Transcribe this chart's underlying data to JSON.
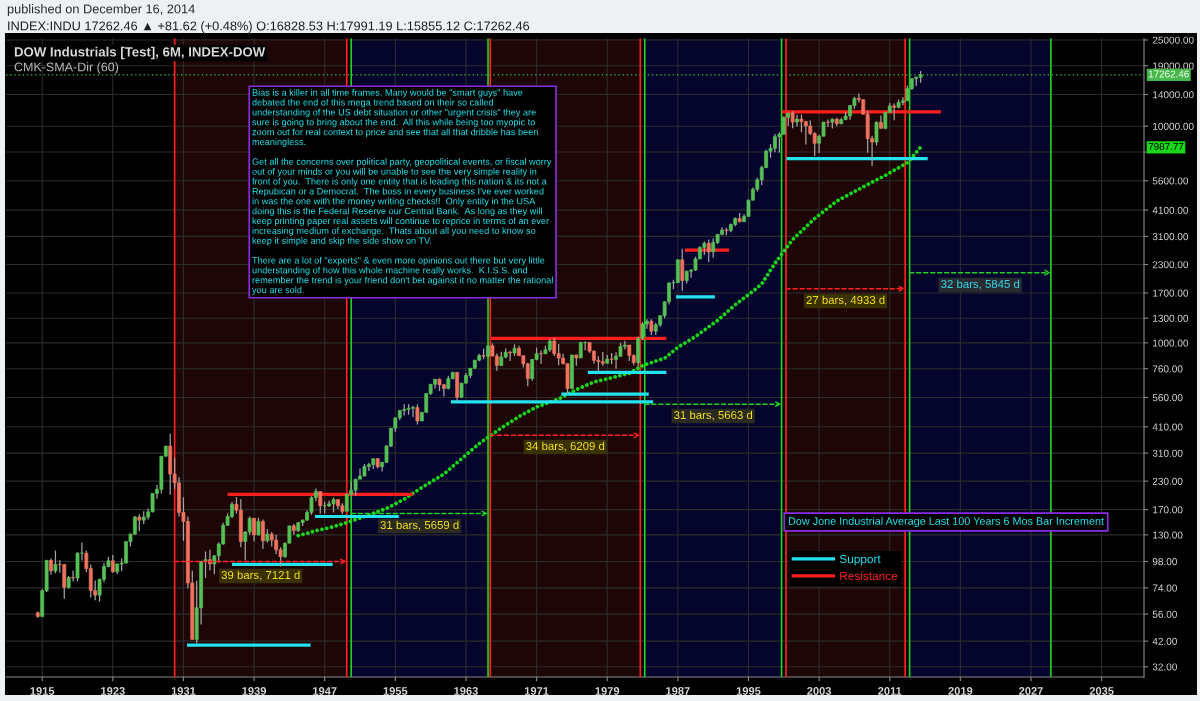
{
  "chart_data": {
    "type": "candlestick",
    "title": "DOW Industrials [Test], 6M, INDEX-DOW",
    "subtitle": "INDEX:INDU 17262.46 ▲ +81.62 (+0.48%) O:16828.53 H:17991.19 L:15855.12 C:17262.46",
    "x": [
      1914.5,
      1915,
      1915.5,
      1916,
      1916.5,
      1917,
      1917.5,
      1918,
      1918.5,
      1919,
      1919.5,
      1920,
      1920.5,
      1921,
      1921.5,
      1922,
      1922.5,
      1923,
      1923.5,
      1924,
      1924.5,
      1925,
      1925.5,
      1926,
      1926.5,
      1927,
      1927.5,
      1928,
      1928.5,
      1929,
      1929.5,
      1930,
      1930.5,
      1931,
      1931.5,
      1932,
      1932.5,
      1933,
      1933.5,
      1934,
      1934.5,
      1935,
      1935.5,
      1936,
      1936.5,
      1937,
      1937.5,
      1938,
      1938.5,
      1939,
      1939.5,
      1940,
      1940.5,
      1941,
      1941.5,
      1942,
      1942.5,
      1943,
      1943.5,
      1944,
      1944.5,
      1945,
      1945.5,
      1946,
      1946.5,
      1947,
      1947.5,
      1948,
      1948.5,
      1949,
      1949.5,
      1950,
      1950.5,
      1951,
      1951.5,
      1952,
      1952.5,
      1953,
      1953.5,
      1954,
      1954.5,
      1955,
      1955.5,
      1956,
      1956.5,
      1957,
      1957.5,
      1958,
      1958.5,
      1959,
      1959.5,
      1960,
      1960.5,
      1961,
      1961.5,
      1962,
      1962.5,
      1963,
      1963.5,
      1964,
      1964.5,
      1965,
      1965.5,
      1966,
      1966.5,
      1967,
      1967.5,
      1968,
      1968.5,
      1969,
      1969.5,
      1970,
      1970.5,
      1971,
      1971.5,
      1972,
      1972.5,
      1973,
      1973.5,
      1974,
      1974.5,
      1975,
      1975.5,
      1976,
      1976.5,
      1977,
      1977.5,
      1978,
      1978.5,
      1979,
      1979.5,
      1980,
      1980.5,
      1981,
      1981.5,
      1982,
      1982.5,
      1983,
      1983.5,
      1984,
      1984.5,
      1985,
      1985.5,
      1986,
      1986.5,
      1987,
      1987.5,
      1988,
      1988.5,
      1989,
      1989.5,
      1990,
      1990.5,
      1991,
      1991.5,
      1992,
      1992.5,
      1993,
      1993.5,
      1994,
      1994.5,
      1995,
      1995.5,
      1996,
      1996.5,
      1997,
      1997.5,
      1998,
      1998.5,
      1999,
      1999.5,
      2000,
      2000.5,
      2001,
      2001.5,
      2002,
      2002.5,
      2003,
      2003.5,
      2004,
      2004.5,
      2005,
      2005.5,
      2006,
      2006.5,
      2007,
      2007.5,
      2008,
      2008.5,
      2009,
      2009.5,
      2010,
      2010.5,
      2011,
      2011.5,
      2012,
      2012.5,
      2013,
      2013.5,
      2014,
      2014.5
    ],
    "ohlc": [
      [
        56.8,
        57.5,
        53.8,
        54.6
      ],
      [
        54.6,
        73,
        54.2,
        71.8
      ],
      [
        71.8,
        99.2,
        70.8,
        99.2
      ],
      [
        99.2,
        101,
        85,
        88.6
      ],
      [
        88.6,
        110,
        86.4,
        95
      ],
      [
        95,
        99.2,
        87,
        94.8
      ],
      [
        94.8,
        95.2,
        66,
        74.4
      ],
      [
        74.4,
        84,
        73.4,
        82.6
      ],
      [
        82.6,
        89.1,
        79.2,
        82.2
      ],
      [
        82.2,
        108,
        79.2,
        107
      ],
      [
        107,
        120,
        98.9,
        107
      ],
      [
        107,
        110,
        87.4,
        90.8
      ],
      [
        90.8,
        94.5,
        66.8,
        72
      ],
      [
        72,
        80,
        64.9,
        68.5
      ],
      [
        68.5,
        81.5,
        63.9,
        81.1
      ],
      [
        81.1,
        96.4,
        78.6,
        93
      ],
      [
        93,
        103,
        92,
        98.7
      ],
      [
        98.7,
        105,
        87,
        87.9
      ],
      [
        87.9,
        95.6,
        85.8,
        95.5
      ],
      [
        95.5,
        101,
        88.3,
        96.4
      ],
      [
        96.4,
        121,
        96,
        121
      ],
      [
        121,
        132,
        115,
        131
      ],
      [
        131,
        159,
        130,
        157
      ],
      [
        157,
        162,
        135,
        152
      ],
      [
        152,
        167,
        146,
        157
      ],
      [
        157,
        172,
        153,
        166
      ],
      [
        166,
        202,
        165,
        202
      ],
      [
        202,
        221,
        191,
        211
      ],
      [
        211,
        300,
        202,
        300
      ],
      [
        300,
        334,
        297,
        334
      ],
      [
        334,
        381,
        199,
        248
      ],
      [
        248,
        294,
        212,
        226
      ],
      [
        226,
        240,
        158,
        165
      ],
      [
        165,
        194,
        122,
        150
      ],
      [
        150,
        158,
        73.8,
        77.9
      ],
      [
        77.9,
        88.8,
        42.7,
        42.8
      ],
      [
        42.8,
        79.9,
        41.2,
        59.9
      ],
      [
        59.9,
        98.5,
        50.2,
        98.1
      ],
      [
        98.1,
        109,
        82.2,
        99.9
      ],
      [
        99.9,
        111,
        89.1,
        95.6
      ],
      [
        95.6,
        105,
        85.5,
        104
      ],
      [
        104,
        120,
        96.7,
        118
      ],
      [
        118,
        148,
        117,
        144
      ],
      [
        144,
        163,
        143,
        158
      ],
      [
        158,
        185,
        155,
        180
      ],
      [
        180,
        194,
        163,
        169
      ],
      [
        169,
        190,
        114,
        121
      ],
      [
        121,
        135,
        99,
        134
      ],
      [
        134,
        158,
        130,
        155
      ],
      [
        155,
        156,
        121,
        130
      ],
      [
        130,
        156,
        129,
        150
      ],
      [
        150,
        153,
        112,
        122
      ],
      [
        122,
        138,
        120,
        131
      ],
      [
        131,
        134,
        115,
        123
      ],
      [
        123,
        130,
        106,
        111
      ],
      [
        111,
        114,
        92.9,
        103
      ],
      [
        103,
        120,
        102,
        119
      ],
      [
        119,
        143,
        119,
        143
      ],
      [
        143,
        146,
        130,
        136
      ],
      [
        136,
        149,
        134,
        148
      ],
      [
        148,
        153,
        143,
        152
      ],
      [
        152,
        169,
        151,
        165
      ],
      [
        165,
        196,
        161,
        193
      ],
      [
        193,
        213,
        186,
        206
      ],
      [
        206,
        206,
        163,
        177
      ],
      [
        177,
        185,
        163,
        177
      ],
      [
        177,
        187,
        175,
        181
      ],
      [
        181,
        193,
        165,
        189
      ],
      [
        189,
        190,
        171,
        177
      ],
      [
        177,
        182,
        162,
        167
      ],
      [
        167,
        201,
        167,
        200
      ],
      [
        200,
        228,
        197,
        209
      ],
      [
        209,
        235,
        197,
        235
      ],
      [
        235,
        263,
        235,
        243
      ],
      [
        243,
        276,
        242,
        269
      ],
      [
        269,
        280,
        256,
        274
      ],
      [
        274,
        292,
        262,
        292
      ],
      [
        292,
        294,
        263,
        268
      ],
      [
        268,
        281,
        255,
        281
      ],
      [
        281,
        337,
        280,
        334
      ],
      [
        334,
        404,
        331,
        404
      ],
      [
        404,
        451,
        388,
        451
      ],
      [
        451,
        488,
        439,
        488
      ],
      [
        488,
        521,
        462,
        493
      ],
      [
        493,
        521,
        466,
        499
      ],
      [
        499,
        513,
        455,
        503
      ],
      [
        503,
        521,
        420,
        436
      ],
      [
        436,
        479,
        436,
        478
      ],
      [
        478,
        584,
        476,
        584
      ],
      [
        584,
        644,
        574,
        644
      ],
      [
        644,
        679,
        616,
        679
      ],
      [
        679,
        685,
        599,
        641
      ],
      [
        641,
        645,
        566,
        616
      ],
      [
        616,
        706,
        610,
        684
      ],
      [
        684,
        735,
        679,
        731
      ],
      [
        731,
        732,
        536,
        561
      ],
      [
        561,
        653,
        558,
        652
      ],
      [
        652,
        727,
        647,
        707
      ],
      [
        707,
        767,
        688,
        763
      ],
      [
        763,
        832,
        763,
        832
      ],
      [
        832,
        892,
        822,
        874
      ],
      [
        874,
        940,
        841,
        868
      ],
      [
        868,
        969,
        862,
        969
      ],
      [
        969,
        995,
        864,
        870
      ],
      [
        870,
        894,
        744,
        786
      ],
      [
        786,
        910,
        786,
        860
      ],
      [
        860,
        943,
        850,
        905
      ],
      [
        905,
        920,
        825,
        898
      ],
      [
        898,
        985,
        872,
        944
      ],
      [
        944,
        969,
        870,
        873
      ],
      [
        873,
        873,
        770,
        800
      ],
      [
        800,
        811,
        631,
        684
      ],
      [
        684,
        842,
        669,
        839
      ],
      [
        839,
        951,
        831,
        891
      ],
      [
        891,
        921,
        798,
        890
      ],
      [
        890,
        971,
        889,
        929
      ],
      [
        929,
        1036,
        910,
        1020
      ],
      [
        1020,
        1052,
        869,
        892
      ],
      [
        892,
        987,
        788,
        851
      ],
      [
        851,
        892,
        795,
        802
      ],
      [
        802,
        803,
        578,
        616
      ],
      [
        616,
        882,
        616,
        879
      ],
      [
        879,
        881,
        784,
        852
      ],
      [
        852,
        1011,
        852,
        1003
      ],
      [
        1003,
        1015,
        924,
        1005
      ],
      [
        1005,
        1005,
        899,
        916
      ],
      [
        916,
        923,
        801,
        831
      ],
      [
        831,
        867,
        742,
        819
      ],
      [
        819,
        908,
        785,
        805
      ],
      [
        805,
        879,
        805,
        842
      ],
      [
        842,
        898,
        797,
        839
      ],
      [
        839,
        904,
        759,
        868
      ],
      [
        868,
        1000,
        865,
        964
      ],
      [
        964,
        1024,
        932,
        977
      ],
      [
        977,
        977,
        824,
        875
      ],
      [
        875,
        883,
        788,
        812
      ],
      [
        812,
        1071,
        777,
        1047
      ],
      [
        1047,
        1248,
        1027,
        1222
      ],
      [
        1222,
        1287,
        1163,
        1259
      ],
      [
        1259,
        1287,
        1087,
        1132
      ],
      [
        1132,
        1240,
        1087,
        1212
      ],
      [
        1212,
        1336,
        1185,
        1335
      ],
      [
        1335,
        1553,
        1298,
        1547
      ],
      [
        1547,
        1893,
        1502,
        1893
      ],
      [
        1893,
        1956,
        1767,
        1896
      ],
      [
        1896,
        2419,
        1896,
        2419
      ],
      [
        2419,
        2722,
        1739,
        1939
      ],
      [
        1939,
        2152,
        1879,
        2142
      ],
      [
        2142,
        2184,
        2000,
        2169
      ],
      [
        2169,
        2500,
        2145,
        2440
      ],
      [
        2440,
        2791,
        2440,
        2753
      ],
      [
        2753,
        2936,
        2543,
        2881
      ],
      [
        2881,
        3000,
        2365,
        2634
      ],
      [
        2634,
        3035,
        2470,
        2907
      ],
      [
        2907,
        3169,
        2862,
        3169
      ],
      [
        3169,
        3413,
        3137,
        3319
      ],
      [
        3319,
        3395,
        3137,
        3301
      ],
      [
        3301,
        3555,
        3242,
        3516
      ],
      [
        3516,
        3794,
        3450,
        3754
      ],
      [
        3754,
        3978,
        3593,
        3625
      ],
      [
        3625,
        3936,
        3624,
        3834
      ],
      [
        3834,
        4590,
        3832,
        4556
      ],
      [
        4556,
        5216,
        4556,
        5117
      ],
      [
        5117,
        5778,
        5000,
        5655
      ],
      [
        5655,
        6561,
        5347,
        6448
      ],
      [
        6448,
        7797,
        6392,
        7673
      ],
      [
        7673,
        8259,
        7161,
        7908
      ],
      [
        7908,
        9212,
        7580,
        8952
      ],
      [
        8952,
        9374,
        7539,
        9181
      ],
      [
        9181,
        11110,
        9121,
        10970
      ],
      [
        10970,
        11500,
        10020,
        11500
      ],
      [
        11500,
        11720,
        9796,
        10450
      ],
      [
        10450,
        11310,
        9975,
        10790
      ],
      [
        10790,
        11340,
        9389,
        10500
      ],
      [
        10500,
        10610,
        8236,
        10020
      ],
      [
        10020,
        10640,
        9120,
        9243
      ],
      [
        9243,
        9380,
        7286,
        8342
      ],
      [
        8342,
        9137,
        7524,
        8985
      ],
      [
        8985,
        10450,
        8985,
        10450
      ],
      [
        10450,
        10740,
        9906,
        10440
      ],
      [
        10440,
        10850,
        9750,
        10780
      ],
      [
        10780,
        10940,
        10010,
        10270
      ],
      [
        10270,
        10930,
        10220,
        10720
      ],
      [
        10720,
        11640,
        10670,
        11150
      ],
      [
        11150,
        12510,
        10700,
        12460
      ],
      [
        12460,
        13680,
        12050,
        13410
      ],
      [
        13410,
        14160,
        12850,
        13260
      ],
      [
        13260,
        13280,
        11350,
        11350
      ],
      [
        11350,
        11780,
        7552,
        8776
      ],
      [
        8776,
        9035,
        6547,
        8447
      ],
      [
        8447,
        10550,
        8147,
        10430
      ],
      [
        10430,
        11210,
        9774,
        9774
      ],
      [
        9774,
        11590,
        9686,
        11580
      ],
      [
        11580,
        12810,
        11560,
        12410
      ],
      [
        12410,
        12720,
        10660,
        12220
      ],
      [
        12220,
        13280,
        12100,
        12880
      ],
      [
        12880,
        13610,
        12490,
        13100
      ],
      [
        13100,
        15410,
        13100,
        14910
      ],
      [
        14910,
        16590,
        14720,
        16580
      ],
      [
        16580,
        16980,
        15340,
        16830
      ],
      [
        16828.53,
        17991.19,
        15855.12,
        17262.46
      ]
    ],
    "colors": [
      "#ef735f",
      "#55c055",
      "#55c055",
      "#ef735f",
      "#55c055",
      "#ef735f",
      "#ef735f",
      "#55c055",
      "#ef735f",
      "#55c055",
      "#55c055",
      "#ef735f",
      "#ef735f",
      "#ef735f",
      "#55c055",
      "#55c055",
      "#55c055",
      "#ef735f",
      "#55c055",
      "#55c055",
      "#55c055",
      "#55c055",
      "#55c055",
      "#ef735f",
      "#55c055",
      "#55c055",
      "#55c055",
      "#55c055",
      "#55c055",
      "#55c055",
      "#ef735f",
      "#ef735f",
      "#ef735f",
      "#ef735f",
      "#ef735f",
      "#ef735f",
      "#55c055",
      "#55c055",
      "#55c055",
      "#ef735f",
      "#55c055",
      "#55c055",
      "#55c055",
      "#55c055",
      "#55c055",
      "#ef735f",
      "#ef735f",
      "#55c055",
      "#55c055",
      "#ef735f",
      "#55c055",
      "#ef735f",
      "#55c055",
      "#ef735f",
      "#ef735f",
      "#ef735f",
      "#55c055",
      "#55c055",
      "#ef735f",
      "#55c055",
      "#55c055",
      "#55c055",
      "#55c055",
      "#55c055",
      "#ef735f",
      "#55c055",
      "#55c055",
      "#55c055",
      "#ef735f",
      "#ef735f",
      "#55c055",
      "#55c055",
      "#55c055",
      "#55c055",
      "#55c055",
      "#55c055",
      "#55c055",
      "#ef735f",
      "#55c055",
      "#55c055",
      "#55c055",
      "#55c055",
      "#55c055",
      "#55c055",
      "#55c055",
      "#55c055",
      "#ef735f",
      "#55c055",
      "#55c055",
      "#55c055",
      "#55c055",
      "#ef735f",
      "#ef735f",
      "#55c055",
      "#55c055",
      "#ef735f",
      "#55c055",
      "#55c055",
      "#55c055",
      "#55c055",
      "#55c055",
      "#ef735f",
      "#55c055",
      "#ef735f",
      "#ef735f",
      "#55c055",
      "#55c055",
      "#ef735f",
      "#55c055",
      "#ef735f",
      "#ef735f",
      "#ef735f",
      "#55c055",
      "#55c055",
      "#ef735f",
      "#55c055",
      "#55c055",
      "#ef735f",
      "#ef735f",
      "#ef735f",
      "#ef735f",
      "#55c055",
      "#ef735f",
      "#55c055",
      "#55c055",
      "#ef735f",
      "#ef735f",
      "#ef735f",
      "#ef735f",
      "#55c055",
      "#ef735f",
      "#55c055",
      "#55c055",
      "#55c055",
      "#ef735f",
      "#ef735f",
      "#55c055",
      "#55c055",
      "#55c055",
      "#ef735f",
      "#55c055",
      "#55c055",
      "#55c055",
      "#55c055",
      "#55c055",
      "#55c055",
      "#ef735f",
      "#55c055",
      "#55c055",
      "#55c055",
      "#55c055",
      "#55c055",
      "#ef735f",
      "#55c055",
      "#55c055",
      "#55c055",
      "#ef735f",
      "#55c055",
      "#55c055",
      "#ef735f",
      "#55c055",
      "#55c055",
      "#55c055",
      "#55c055",
      "#55c055",
      "#55c055",
      "#55c055",
      "#55c055",
      "#55c055",
      "#55c055",
      "#55c055",
      "#ef735f",
      "#55c055",
      "#ef735f",
      "#ef735f",
      "#ef735f",
      "#ef735f",
      "#55c055",
      "#55c055",
      "#ef735f",
      "#55c055",
      "#ef735f",
      "#55c055",
      "#55c055",
      "#55c055",
      "#55c055",
      "#ef735f",
      "#ef735f",
      "#ef735f",
      "#ef735f",
      "#55c055",
      "#ef735f",
      "#55c055",
      "#55c055",
      "#ef735f",
      "#55c055",
      "#55c055",
      "#55c055",
      "#55c055",
      "#55c055",
      "#55c055"
    ],
    "series": [
      {
        "type": "line",
        "color": "#18d818",
        "line_style": "dotted",
        "x": [
          1944,
          1945,
          1946,
          1947.5,
          1949.5,
          1951.5,
          1954,
          1956,
          1958,
          1960.5,
          1962.5,
          1964.5,
          1967,
          1969,
          1971,
          1973.5,
          1975.5,
          1977.5,
          1979.5,
          1981.5,
          1983,
          1985.5,
          1987,
          1989,
          1991.5,
          1993.5,
          1995.5,
          1996.5,
          1998,
          2000,
          2002.5,
          2005,
          2008,
          2010.5,
          2013,
          2014.5
        ],
        "values": [
          129,
          132,
          136,
          140,
          148,
          158,
          172,
          190,
          215,
          248,
          292,
          343,
          405,
          457,
          506,
          551,
          609,
          660,
          690,
          724,
          785,
          850,
          954,
          1070,
          1270,
          1500,
          1730,
          1870,
          2330,
          3000,
          3750,
          4510,
          5250,
          5930,
          6790,
          7987.77
        ]
      },
      {
        "type": "line",
        "name": "Support",
        "color": "#22e3ee",
        "x": [
          1931.4,
          1945.4,
          null,
          1936.5,
          1947.9,
          null,
          1945.9,
          1955.4,
          null,
          1961.3,
          1984.2,
          null,
          1973.8,
          1983.7,
          null,
          1976.8,
          1985.7,
          null,
          1986.8,
          1991.2,
          null,
          1999.3,
          2015.3
        ],
        "values": [
          40.3,
          40.3,
          null,
          94.9,
          94.9,
          null,
          158,
          158,
          null,
          534,
          534,
          null,
          580,
          580,
          null,
          731,
          731,
          null,
          1630,
          1630,
          null,
          7080,
          7080
        ]
      },
      {
        "type": "line",
        "name": "Resistance",
        "color": "#ff1f1f",
        "x": [
          1936,
          1957,
          null,
          1965.8,
          1985.7,
          null,
          1987.8,
          1992.8,
          null,
          1998.8,
          2016.8
        ],
        "values": [
          200,
          200,
          null,
          1050,
          1050,
          null,
          2680,
          2680,
          null,
          11640,
          11640
        ]
      }
    ],
    "bands": [
      {
        "axis": "x",
        "from": 1930,
        "to": 1949.5,
        "color": "#1e0606"
      },
      {
        "axis": "x",
        "from": 1950,
        "to": 1965.5,
        "color": "#04042c"
      },
      {
        "axis": "x",
        "from": 1965.75,
        "to": 1982.75,
        "color": "#1e0606"
      },
      {
        "axis": "x",
        "from": 1983.25,
        "to": 1998.75,
        "color": "#04042c"
      },
      {
        "axis": "x",
        "from": 1999.25,
        "to": 2012.75,
        "color": "#1e0606"
      },
      {
        "axis": "x",
        "from": 2013.25,
        "to": 2029.25,
        "color": "#04042c"
      }
    ],
    "ref_lines": [
      {
        "axis": "y",
        "value": 17262.46,
        "label": "17262.46",
        "line_style": "dotted",
        "color": "#45b84a"
      },
      {
        "axis": "x",
        "value": 1930,
        "color": "#ff2020"
      },
      {
        "axis": "x",
        "value": 1949.5,
        "color": "#ff2020"
      },
      {
        "axis": "x",
        "value": 1950,
        "color": "#22d022"
      },
      {
        "axis": "x",
        "value": 1965.5,
        "color": "#22d022"
      },
      {
        "axis": "x",
        "value": 1965.75,
        "color": "#ff2020"
      },
      {
        "axis": "x",
        "value": 1982.75,
        "color": "#ff2020"
      },
      {
        "axis": "x",
        "value": 1983.25,
        "color": "#22d022"
      },
      {
        "axis": "x",
        "value": 1998.75,
        "color": "#22d022"
      },
      {
        "axis": "x",
        "value": 1999.25,
        "color": "#ff2020"
      },
      {
        "axis": "x",
        "value": 2012.75,
        "color": "#ff2020"
      },
      {
        "axis": "x",
        "value": 2013.25,
        "color": "#22d022"
      },
      {
        "axis": "x",
        "value": 2029.25,
        "color": "#22d022"
      }
    ],
    "annotations": [
      "published on December 16, 2014",
      "CMK-SMA-Dir (60)",
      "Bias is a killer in all time frames. Many would be \"smart guys\" have\ndebated the end of this mega trend based on their so called\nunderstanding of the US debt situation or other \"urgent crisis\" they are\nsure is going to bring about the end.  All this while being too myopic to\nzoom out for real context to price and see that all that dribble has been\nmeaningless.\n\nGet all the concerns over political party, geopolitical events, or fiscal worry\nout of your minds or you will be unable to see the very simple reality in\nfront of you.  There is only one entity that is leading this nation & its not a\nRepubican or a Democrat.  The boss in every business I've ever worked\nin was the one with the money writing checks!!  Only entity in the USA\ndoing this is the Federal Reserve our Central Bank.  As long as they will\nkeep printing paper real assets will continue to reprice in terms of an ever\nincreasing medium of exchange.  Thats about all you need to know so\nkeep it simple and skip the side show on TV.\n\nThere are a lot of \"experts\" & even more opinions out there but very little\nunderstanding of how this whole machine really works.  K.I.S.S. and\nremember the trend is your friend don't bet against it no matter the rational\nyou are sold.",
      "Dow Jone Industrial Average Last 100 Years 6 Mos Bar Increment",
      "39 bars, 7121 d",
      "31 bars, 5659 d",
      "34 bars, 6209 d",
      "31 bars, 5663 d",
      "27 bars, 4933 d",
      "32 bars, 5845 d",
      "7987.77"
    ],
    "log": "y",
    "grid": true,
    "legend": "bottom right",
    "xlim": [
      1910.9,
      2039.8
    ],
    "ylim": [
      28.7,
      25400
    ],
    "xticks": [
      1915,
      1923,
      1931,
      1939,
      1947,
      1955,
      1963,
      1971,
      1979,
      1987,
      1995,
      2003,
      2011,
      2019,
      2027,
      2035
    ],
    "yticks": [
      {
        "value": 32,
        "label": "32.00"
      },
      {
        "value": 42,
        "label": "42.00"
      },
      {
        "value": 56,
        "label": "56.00"
      },
      {
        "value": 74,
        "label": "74.00"
      },
      {
        "value": 98,
        "label": "98.00"
      },
      {
        "value": 130,
        "label": "130.00"
      },
      {
        "value": 170,
        "label": "170.00"
      },
      {
        "value": 230,
        "label": "230.00"
      },
      {
        "value": 310,
        "label": "310.00"
      },
      {
        "value": 410,
        "label": "410.00"
      },
      {
        "value": 560,
        "label": "560.00"
      },
      {
        "value": 760,
        "label": "760.00"
      },
      {
        "value": 1000,
        "label": "1000.00"
      },
      {
        "value": 1300,
        "label": "1300.00"
      },
      {
        "value": 1700,
        "label": "1700.00"
      },
      {
        "value": 2300,
        "label": "2300.00"
      },
      {
        "value": 3100,
        "label": "3100.00"
      },
      {
        "value": 4100,
        "label": "4100.00"
      },
      {
        "value": 5600,
        "label": "5600.00"
      },
      {
        "value": 7600,
        "label": null
      },
      {
        "value": 10000,
        "label": "10000.00"
      },
      {
        "value": 14000,
        "label": "14000.00"
      },
      {
        "value": 19000,
        "label": "19000.00"
      },
      {
        "value": 25000,
        "label": "25000.00"
      }
    ]
  }
}
